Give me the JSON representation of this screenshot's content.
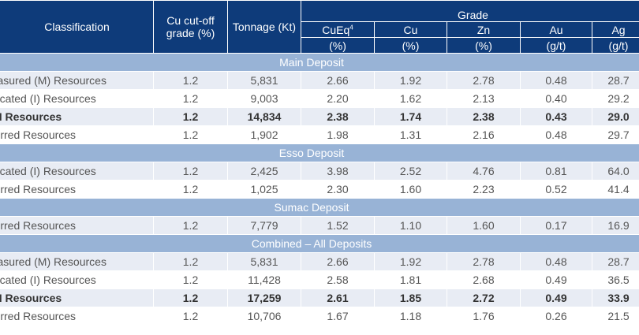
{
  "header": {
    "classification": "Classification",
    "cutoff": "Cu cut-off grade (%)",
    "tonnage": "Tonnage (Kt)",
    "grade": "Grade",
    "metals": [
      {
        "name": "CuEq",
        "sup": "4",
        "unit": "(%)"
      },
      {
        "name": "Cu",
        "unit": "(%)"
      },
      {
        "name": "Zn",
        "unit": "(%)"
      },
      {
        "name": "Au",
        "unit": "(g/t)"
      },
      {
        "name": "Ag",
        "unit": "(g/t)"
      }
    ]
  },
  "sections": [
    {
      "title": "Main Deposit",
      "rows": [
        {
          "label": "Measured (M) Resources",
          "cells": [
            "1.2",
            "5,831",
            "2.66",
            "1.92",
            "2.78",
            "0.48",
            "28.7"
          ]
        },
        {
          "label": "Indicated (I) Resources",
          "cells": [
            "1.2",
            "9,003",
            "2.20",
            "1.62",
            "2.13",
            "0.40",
            "29.2"
          ]
        },
        {
          "label": "M&I Resources",
          "bold": true,
          "cells": [
            "1.2",
            "14,834",
            "2.38",
            "1.74",
            "2.38",
            "0.43",
            "29.0"
          ]
        },
        {
          "label": "Inferred Resources",
          "cells": [
            "1.2",
            "1,902",
            "1.98",
            "1.31",
            "2.16",
            "0.48",
            "29.7"
          ]
        }
      ]
    },
    {
      "title": "Esso Deposit",
      "rows": [
        {
          "label": "Indicated (I) Resources",
          "cells": [
            "1.2",
            "2,425",
            "3.98",
            "2.52",
            "4.76",
            "0.81",
            "64.0"
          ]
        },
        {
          "label": "Inferred Resources",
          "cells": [
            "1.2",
            "1,025",
            "2.30",
            "1.60",
            "2.23",
            "0.52",
            "41.4"
          ]
        }
      ]
    },
    {
      "title": "Sumac Deposit",
      "rows": [
        {
          "label": "Inferred Resources",
          "cells": [
            "1.2",
            "7,779",
            "1.52",
            "1.10",
            "1.60",
            "0.17",
            "16.9"
          ]
        }
      ]
    },
    {
      "title": "Combined – All Deposits",
      "rows": [
        {
          "label": "Measured (M) Resources",
          "cells": [
            "1.2",
            "5,831",
            "2.66",
            "1.92",
            "2.78",
            "0.48",
            "28.7"
          ]
        },
        {
          "label": "Indicated (I) Resources",
          "cells": [
            "1.2",
            "11,428",
            "2.58",
            "1.81",
            "2.68",
            "0.49",
            "36.5"
          ]
        },
        {
          "label": "M&I Resources",
          "bold": true,
          "cells": [
            "1.2",
            "17,259",
            "2.61",
            "1.85",
            "2.72",
            "0.49",
            "33.9"
          ]
        },
        {
          "label": "Inferred Resources",
          "cells": [
            "1.2",
            "10,706",
            "1.67",
            "1.18",
            "1.76",
            "0.26",
            "21.5"
          ]
        }
      ]
    }
  ],
  "colors": {
    "header_bg": "#0e3b7a",
    "section_bg": "#98b3d6",
    "row_alt_bg": "#e8ecf4"
  }
}
